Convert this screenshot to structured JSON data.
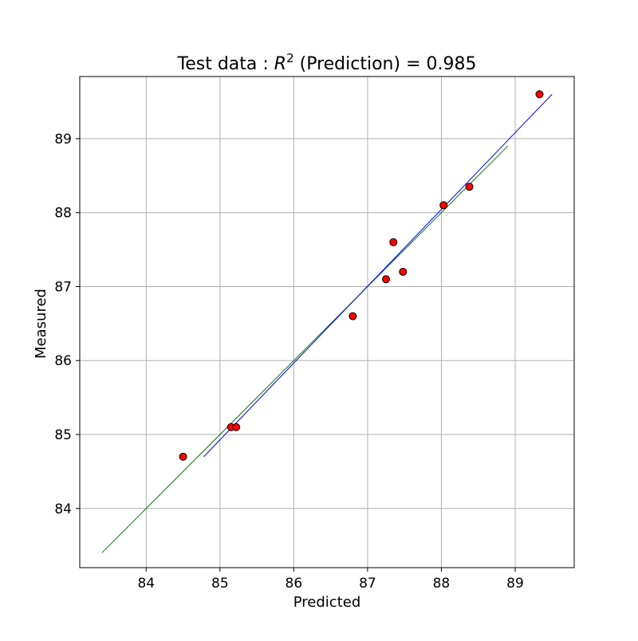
{
  "chart_data": {
    "type": "scatter",
    "title": {
      "prefix": "Test data : ",
      "r_symbol": "R",
      "r_exponent": "2",
      "suffix": " (Prediction) = 0.985"
    },
    "xlabel": "Predicted",
    "ylabel": "Measured",
    "xlim": [
      83.1,
      89.8
    ],
    "ylim": [
      83.2,
      89.84
    ],
    "x_ticks": [
      84,
      85,
      86,
      87,
      88,
      89
    ],
    "y_ticks": [
      84,
      85,
      86,
      87,
      88,
      89
    ],
    "grid": true,
    "points": {
      "x": [
        84.5,
        85.15,
        85.22,
        86.8,
        87.25,
        87.35,
        87.48,
        88.03,
        88.38,
        89.33
      ],
      "y": [
        84.7,
        85.1,
        85.1,
        86.6,
        87.1,
        87.6,
        87.2,
        88.1,
        88.35,
        89.6
      ],
      "color": "#ff0000",
      "edge_color": "#000000"
    },
    "lines": [
      {
        "x": [
          83.4,
          88.9
        ],
        "y": [
          83.4,
          88.9
        ],
        "color": "#008000"
      },
      {
        "x": [
          84.78,
          89.5
        ],
        "y": [
          84.7,
          89.6
        ],
        "color": "#0000ff"
      }
    ]
  }
}
